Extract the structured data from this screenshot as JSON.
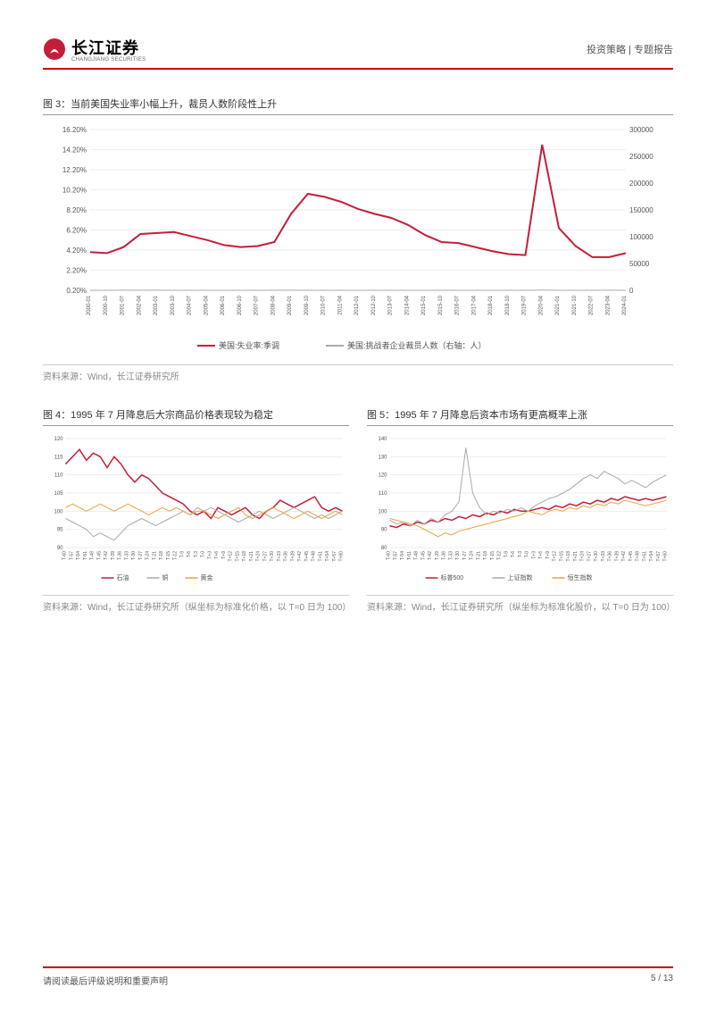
{
  "header": {
    "brand": "长江证券",
    "brand_en": "CHANGJIANG SECURITIES",
    "right": "投资策略 | 专题报告"
  },
  "footer": {
    "left": "请阅读最后评级说明和重要声明",
    "page": "5 / 13"
  },
  "fig3": {
    "title": "图 3：当前美国失业率小幅上升，裁员人数阶段性上升",
    "source": "资料来源：Wind，长江证券研究所",
    "type": "dual-axis-line",
    "left_axis": {
      "min": 0.2,
      "max": 16.2,
      "step": 2,
      "format": "pct",
      "labels": [
        "0.20%",
        "2.20%",
        "4.20%",
        "6.20%",
        "8.20%",
        "10.20%",
        "12.20%",
        "14.20%",
        "16.20%"
      ]
    },
    "right_axis": {
      "min": 0,
      "max": 300000,
      "step": 50000,
      "labels": [
        "0",
        "50000",
        "100000",
        "150000",
        "200000",
        "250000",
        "300000"
      ]
    },
    "x_labels": [
      "2000-01",
      "2000-10",
      "2001-07",
      "2002-04",
      "2003-01",
      "2003-10",
      "2004-07",
      "2005-04",
      "2006-01",
      "2006-10",
      "2007-07",
      "2008-04",
      "2009-01",
      "2009-10",
      "2010-07",
      "2011-04",
      "2012-01",
      "2012-10",
      "2013-07",
      "2014-04",
      "2015-01",
      "2015-10",
      "2016-07",
      "2017-04",
      "2018-01",
      "2018-10",
      "2019-07",
      "2020-04",
      "2021-01",
      "2021-10",
      "2022-07",
      "2023-04",
      "2024-01"
    ],
    "legend": [
      {
        "label": "美国:失业率:季调",
        "color": "#c41e3a"
      },
      {
        "label": "美国:挑战者企业裁员人数（右轴：人）",
        "color": "#aaa"
      }
    ],
    "series1": {
      "color": "#c41e3a",
      "width": 2,
      "data": [
        4.0,
        3.9,
        4.5,
        5.8,
        5.9,
        6.0,
        5.6,
        5.2,
        4.7,
        4.5,
        4.6,
        5.0,
        7.8,
        9.8,
        9.5,
        9.0,
        8.3,
        7.8,
        7.4,
        6.7,
        5.7,
        5.0,
        4.9,
        4.5,
        4.1,
        3.8,
        3.7,
        14.7,
        6.4,
        4.6,
        3.5,
        3.5,
        3.9
      ]
    },
    "series2": {
      "color": "#aaa",
      "width": 1,
      "data": [
        40,
        50,
        230,
        140,
        100,
        80,
        75,
        70,
        55,
        60,
        50,
        90,
        240,
        70,
        50,
        45,
        55,
        40,
        42,
        35,
        40,
        35,
        32,
        35,
        30,
        45,
        40,
        300,
        80,
        25,
        35,
        100,
        70
      ]
    }
  },
  "fig4": {
    "title": "图 4：1995 年 7 月降息后大宗商品价格表现较为稳定",
    "source": "资料来源：Wind，长江证券研究所（纵坐标为标准化价格，以 T=0 日为 100）",
    "type": "line",
    "ylim": [
      90,
      120
    ],
    "ytick": [
      90,
      95,
      100,
      105,
      110,
      115,
      120
    ],
    "x_labels": [
      "T-60",
      "T-57",
      "T-54",
      "T-51",
      "T-48",
      "T-45",
      "T-42",
      "T-39",
      "T-36",
      "T-33",
      "T-30",
      "T-27",
      "T-24",
      "T-21",
      "T-18",
      "T-15",
      "T-12",
      "T-9",
      "T-6",
      "T-3",
      "T-0",
      "T+3",
      "T+6",
      "T+9",
      "T+12",
      "T+15",
      "T+18",
      "T+21",
      "T+24",
      "T+27",
      "T+30",
      "T+33",
      "T+36",
      "T+39",
      "T+42",
      "T+45",
      "T+48",
      "T+51",
      "T+54",
      "T+57",
      "T+60"
    ],
    "legend": [
      {
        "label": "石油",
        "color": "#c41e3a"
      },
      {
        "label": "铜",
        "color": "#aaa"
      },
      {
        "label": "黄金",
        "color": "#e8a23c"
      }
    ],
    "series": [
      {
        "color": "#c41e3a",
        "width": 1.5,
        "data": [
          113,
          115,
          117,
          114,
          116,
          115,
          112,
          115,
          113,
          110,
          108,
          110,
          109,
          107,
          105,
          104,
          103,
          102,
          100,
          99,
          100,
          98,
          101,
          100,
          99,
          100,
          101,
          99,
          98,
          100,
          101,
          103,
          102,
          101,
          102,
          103,
          104,
          101,
          100,
          101,
          100
        ]
      },
      {
        "color": "#aaa",
        "width": 1,
        "data": [
          98,
          97,
          96,
          95,
          93,
          94,
          93,
          92,
          94,
          96,
          97,
          98,
          97,
          96,
          97,
          98,
          99,
          100,
          99,
          101,
          100,
          101,
          100,
          99,
          98,
          97,
          98,
          99,
          100,
          99,
          98,
          99,
          100,
          101,
          100,
          99,
          98,
          99,
          98,
          99,
          100
        ]
      },
      {
        "color": "#e8a23c",
        "width": 1,
        "data": [
          101,
          102,
          101,
          100,
          101,
          102,
          101,
          100,
          101,
          102,
          101,
          100,
          99,
          100,
          101,
          100,
          101,
          100,
          99,
          100,
          100,
          99,
          98,
          99,
          100,
          101,
          99,
          98,
          99,
          100,
          101,
          100,
          99,
          98,
          99,
          100,
          99,
          98,
          99,
          100,
          99
        ]
      }
    ]
  },
  "fig5": {
    "title": "图 5：1995 年 7 月降息后资本市场有更高概率上涨",
    "source": "资料来源：Wind，长江证券研究所（纵坐标为标准化股价，以 T=0 日为 100）",
    "type": "line",
    "ylim": [
      80,
      140
    ],
    "ytick": [
      80,
      90,
      100,
      110,
      120,
      130,
      140
    ],
    "x_labels": [
      "T-60",
      "T-57",
      "T-54",
      "T-51",
      "T-48",
      "T-45",
      "T-42",
      "T-39",
      "T-36",
      "T-33",
      "T-30",
      "T-27",
      "T-24",
      "T-21",
      "T-18",
      "T-15",
      "T-12",
      "T-9",
      "T-6",
      "T-3",
      "T-0",
      "T+3",
      "T+6",
      "T+9",
      "T+12",
      "T+15",
      "T+18",
      "T+21",
      "T+24",
      "T+27",
      "T+30",
      "T+33",
      "T+36",
      "T+39",
      "T+42",
      "T+45",
      "T+48",
      "T+51",
      "T+54",
      "T+57",
      "T+60"
    ],
    "legend": [
      {
        "label": "标普500",
        "color": "#c41e3a"
      },
      {
        "label": "上证指数",
        "color": "#aaa"
      },
      {
        "label": "恒生指数",
        "color": "#e8a23c"
      }
    ],
    "series": [
      {
        "color": "#c41e3a",
        "width": 1.5,
        "data": [
          92,
          91,
          93,
          92,
          94,
          93,
          95,
          94,
          96,
          95,
          97,
          96,
          98,
          97,
          99,
          98,
          100,
          99,
          101,
          100,
          100,
          101,
          102,
          101,
          103,
          102,
          104,
          103,
          105,
          104,
          106,
          105,
          107,
          106,
          108,
          107,
          106,
          107,
          106,
          107,
          108
        ]
      },
      {
        "color": "#aaa",
        "width": 1,
        "data": [
          95,
          93,
          94,
          92,
          95,
          93,
          96,
          94,
          98,
          100,
          105,
          135,
          110,
          102,
          98,
          100,
          99,
          101,
          100,
          102,
          100,
          103,
          105,
          107,
          108,
          110,
          112,
          115,
          118,
          120,
          118,
          122,
          120,
          118,
          115,
          117,
          115,
          113,
          116,
          118,
          120
        ]
      },
      {
        "color": "#e8a23c",
        "width": 1,
        "data": [
          96,
          95,
          94,
          93,
          92,
          90,
          88,
          86,
          88,
          87,
          89,
          90,
          91,
          92,
          93,
          94,
          95,
          96,
          97,
          98,
          100,
          99,
          98,
          100,
          101,
          100,
          102,
          101,
          103,
          102,
          104,
          103,
          105,
          104,
          106,
          105,
          104,
          103,
          104,
          105,
          106
        ]
      }
    ]
  },
  "colors": {
    "brand": "#c41e3a",
    "grid": "#ddd",
    "text": "#555"
  }
}
